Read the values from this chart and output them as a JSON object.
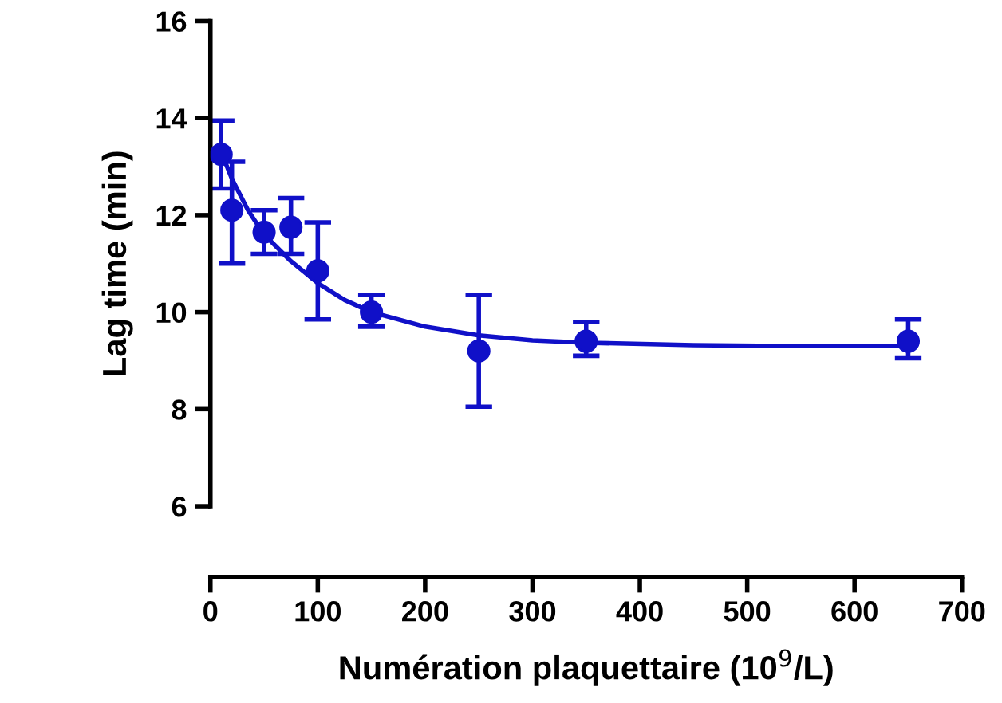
{
  "chart_data": {
    "type": "scatter",
    "xlabel": "Numération plaquettaire (10$^{9}$/L)",
    "ylabel": "Lag time (min)",
    "xlim": [
      0,
      700
    ],
    "xticks": [
      0,
      100,
      200,
      300,
      400,
      500,
      600,
      700
    ],
    "ylim": [
      6,
      16
    ],
    "yticks": [
      6,
      8,
      10,
      12,
      14,
      16
    ],
    "grid": false,
    "series": [
      {
        "marker": "circle",
        "color": "#1010c8",
        "x": [
          10,
          20,
          50,
          75,
          100,
          150,
          250,
          350,
          650
        ],
        "values": [
          13.25,
          12.1,
          11.65,
          11.75,
          10.85,
          10.0,
          9.2,
          9.4,
          9.4
        ],
        "errors": [
          [
            12.55,
            13.95
          ],
          [
            11.0,
            13.1
          ],
          [
            11.2,
            12.1
          ],
          [
            11.2,
            12.35
          ],
          [
            9.85,
            11.85
          ],
          [
            9.7,
            10.35
          ],
          [
            8.05,
            10.35
          ],
          [
            9.1,
            9.8
          ],
          [
            9.05,
            9.85
          ]
        ]
      },
      {
        "type": "line",
        "marker": "none",
        "color": "#1010c8",
        "line_style": "solid",
        "x": [
          10,
          20,
          35,
          50,
          75,
          100,
          125,
          150,
          200,
          250,
          300,
          350,
          450,
          550,
          650
        ],
        "values": [
          13.3,
          12.75,
          12.1,
          11.6,
          11.05,
          10.6,
          10.25,
          10.0,
          9.7,
          9.52,
          9.42,
          9.37,
          9.32,
          9.3,
          9.3
        ]
      }
    ]
  }
}
